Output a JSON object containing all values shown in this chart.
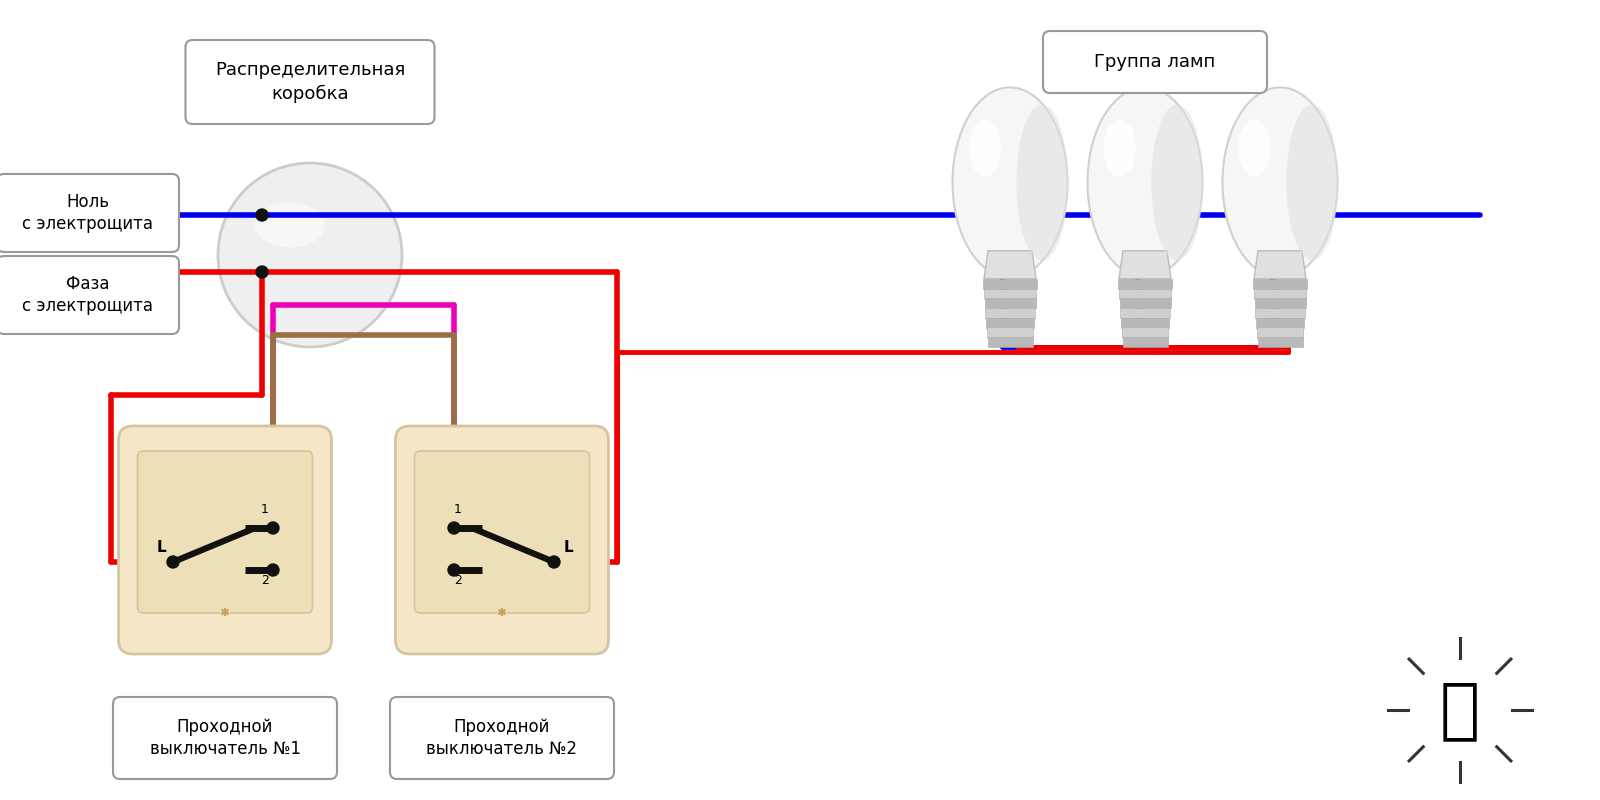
{
  "bg_color": "#ffffff",
  "labels": {
    "distribution_box": "Распределительная\nкоробка",
    "neutral": "Ноль\nс электрощита",
    "phase": "Фаза\nс электрощита",
    "lamp_group": "Группа ламп",
    "switch1": "Проходной\nвыключатель №1",
    "switch2": "Проходной\nвыключатель №2"
  },
  "colors": {
    "blue": "#0000ee",
    "red": "#ee0000",
    "magenta": "#ee00bb",
    "brown": "#9b7040",
    "black": "#111111",
    "white": "#ffffff",
    "switch_bg": "#f5e6c8",
    "switch_border": "#d4c4a0",
    "switch_inner": "#ede0b8",
    "box_fill": "#e8e8e8",
    "box_edge": "#cccccc"
  },
  "lw": 3.5,
  "dot_r": 6
}
